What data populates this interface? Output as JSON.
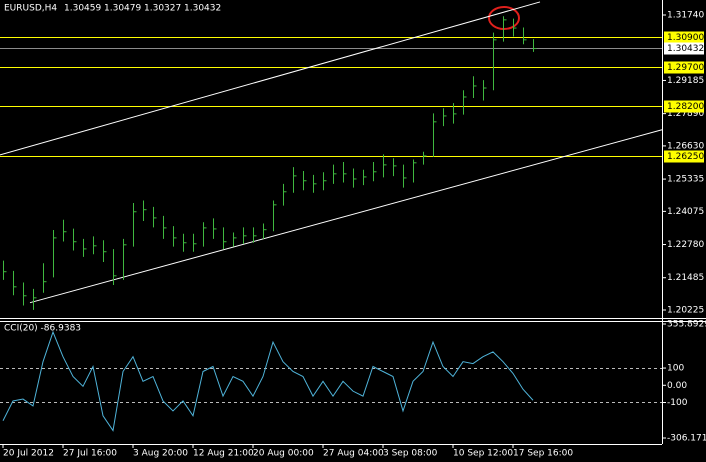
{
  "chart_data": [
    {
      "type": "ohlc",
      "symbol": "EURUSD,H4",
      "quote": [
        1.30459,
        1.30479,
        1.30327,
        1.30432
      ],
      "color": "#3fb83f",
      "high": [
        1.2215,
        1.2175,
        1.213,
        1.2105,
        1.2205,
        1.2335,
        1.2375,
        1.234,
        1.23,
        1.231,
        1.2295,
        1.226,
        1.23,
        1.244,
        1.245,
        1.2425,
        1.239,
        1.235,
        1.232,
        1.232,
        1.2365,
        1.238,
        1.2345,
        1.2325,
        1.2345,
        1.2345,
        1.236,
        1.245,
        1.2515,
        1.258,
        1.2565,
        1.255,
        1.256,
        1.259,
        1.26,
        1.2575,
        1.257,
        1.26,
        1.263,
        1.2615,
        1.259,
        1.261,
        1.264,
        1.279,
        1.281,
        1.283,
        1.288,
        1.2935,
        1.292,
        1.3105,
        1.3169,
        1.316,
        1.3125,
        1.308
      ],
      "low": [
        1.214,
        1.208,
        1.204,
        1.2023,
        1.209,
        1.215,
        1.229,
        1.2255,
        1.223,
        1.224,
        1.221,
        1.212,
        1.214,
        1.227,
        1.237,
        1.2345,
        1.23,
        1.227,
        1.225,
        1.225,
        1.227,
        1.23,
        1.226,
        1.227,
        1.228,
        1.2285,
        1.23,
        1.233,
        1.243,
        1.248,
        1.249,
        1.248,
        1.249,
        1.2515,
        1.252,
        1.25,
        1.251,
        1.2525,
        1.254,
        1.2545,
        1.25,
        1.252,
        1.259,
        1.262,
        1.274,
        1.275,
        1.2785,
        1.285,
        1.284,
        1.288,
        1.307,
        1.309,
        1.306,
        1.303
      ],
      "close": [
        1.2172,
        1.2113,
        1.2078,
        1.207,
        1.2133,
        1.2304,
        1.2328,
        1.2289,
        1.2261,
        1.2273,
        1.225,
        1.2156,
        1.2277,
        1.2406,
        1.2414,
        1.2382,
        1.2343,
        1.2304,
        1.2285,
        1.2281,
        1.2343,
        1.2339,
        1.2289,
        1.2304,
        1.2312,
        1.2312,
        1.2336,
        1.2433,
        1.2484,
        1.2546,
        1.2527,
        1.2515,
        1.2527,
        1.2554,
        1.2554,
        1.2534,
        1.2542,
        1.2562,
        1.2589,
        1.2585,
        1.2538,
        1.2597,
        1.2624,
        1.2757,
        1.278,
        1.2788,
        1.2854,
        1.2897,
        1.2889,
        1.3077,
        1.3155,
        1.3123,
        1.3077,
        1.3043
      ],
      "ylim": [
        1.19913,
        1.32325
      ],
      "yticks": [
        {
          "value": 1.3174,
          "label": "1.31740"
        },
        {
          "value": 1.29185,
          "label": "1.29185"
        },
        {
          "value": 1.2789,
          "label": "1.27890"
        },
        {
          "value": 1.2663,
          "label": "1.26630"
        },
        {
          "value": 1.25335,
          "label": "1.25335"
        },
        {
          "value": 1.24075,
          "label": "1.24075"
        },
        {
          "value": 1.2278,
          "label": "1.22780"
        },
        {
          "value": 1.21485,
          "label": "1.21485"
        },
        {
          "value": 1.20225,
          "label": "1.20225"
        }
      ],
      "hlines": [
        {
          "value": 1.309,
          "label": "1.30900"
        },
        {
          "value": 1.297,
          "label": "1.29700"
        },
        {
          "value": 1.282,
          "label": "1.28200"
        },
        {
          "value": 1.2625,
          "label": "1.26250"
        }
      ],
      "hline_color": "#ffff00",
      "current_price": {
        "value": 1.30432,
        "label": "1.30432"
      },
      "trendlines": [
        {
          "x": [
            -0.3,
            53.7
          ],
          "y": [
            1.2628,
            1.3225
          ]
        },
        {
          "x": [
            2.7,
            65.9
          ],
          "y": [
            1.2051,
            1.2726
          ]
        }
      ]
    },
    {
      "type": "line",
      "title": "CCI(20) -86.9383",
      "color": "#4fb3d9",
      "categories": [
        "20 Jul 2012",
        null,
        null,
        null,
        null,
        null,
        "27 Jul 16:00",
        null,
        null,
        null,
        null,
        null,
        null,
        "3 Aug 20:00",
        null,
        null,
        null,
        null,
        null,
        "12 Aug 21:00",
        null,
        null,
        null,
        null,
        null,
        "20 Aug 00:00",
        null,
        null,
        null,
        null,
        null,
        null,
        "27 Aug 04:00",
        null,
        null,
        null,
        null,
        null,
        "3 Sep 08:00",
        null,
        null,
        null,
        null,
        null,
        null,
        "10 Sep 12:00",
        null,
        null,
        null,
        null,
        null,
        "17 Sep 16:00",
        null,
        null
      ],
      "values": [
        -206,
        -91,
        -80,
        -120,
        137,
        309,
        166,
        51,
        -6,
        109,
        -177,
        -263,
        80,
        166,
        23,
        51,
        -91,
        -149,
        -91,
        -177,
        80,
        109,
        -63,
        51,
        23,
        -63,
        51,
        251,
        137,
        80,
        51,
        -63,
        23,
        -63,
        23,
        -34,
        -63,
        109,
        80,
        51,
        -149,
        23,
        80,
        251,
        109,
        51,
        137,
        126,
        166,
        194,
        137,
        69,
        -23,
        -86.9
      ],
      "ylim": [
        -306.171,
        355.8929
      ],
      "yticks": [
        {
          "value": 355.8929,
          "label": "355.8929"
        },
        100,
        {
          "value": 0,
          "label": "0.00"
        },
        -100,
        {
          "value": -306.171,
          "label": "-306.171"
        }
      ],
      "levels": [
        100,
        -100
      ]
    }
  ]
}
